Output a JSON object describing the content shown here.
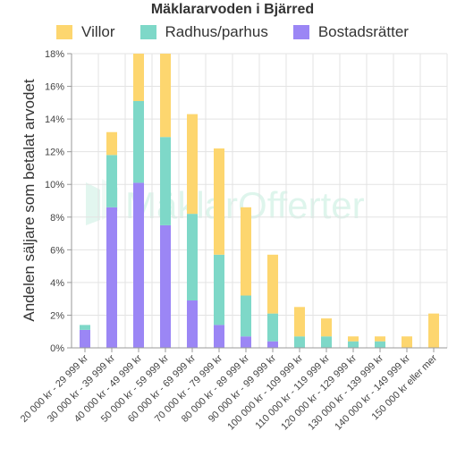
{
  "chart_data": {
    "type": "bar",
    "stacked": true,
    "title": "Mäklararvoden i Bjärred",
    "ylabel": "Andelen säljare som betalat arvodet",
    "xlabel": "",
    "ylim": [
      0,
      18
    ],
    "y_ticks": [
      "0%",
      "2%",
      "4%",
      "6%",
      "8%",
      "10%",
      "12%",
      "14%",
      "16%",
      "18%"
    ],
    "grid": true,
    "legend_position": "top",
    "categories": [
      "20 000 kr - 29 999 kr",
      "30 000 kr - 39 999 kr",
      "40 000 kr - 49 999 kr",
      "50 000 kr - 59 999 kr",
      "60 000 kr - 69 999 kr",
      "70 000 kr - 79 999 kr",
      "80 000 kr - 89 999 kr",
      "90 000 kr - 99 999 kr",
      "100 000 kr - 109 999 kr",
      "110 000 kr - 119 999 kr",
      "120 000 kr - 129 999 kr",
      "130 000 kr - 139 999 kr",
      "140 000 kr - 149 999 kr",
      "150 000 kr eller mer"
    ],
    "series": [
      {
        "name": "Bostadsrätter",
        "color": "#9b86f5",
        "values": [
          1.1,
          8.6,
          10.1,
          7.5,
          2.9,
          1.4,
          0.7,
          0.4,
          0,
          0,
          0,
          0,
          0,
          0
        ]
      },
      {
        "name": "Radhus/parhus",
        "color": "#7ed8c8",
        "values": [
          0.3,
          3.2,
          5.0,
          5.4,
          5.3,
          4.3,
          2.5,
          1.7,
          0.7,
          0.7,
          0.4,
          0.4,
          0,
          0
        ]
      },
      {
        "name": "Villor",
        "color": "#fdd66f",
        "values": [
          0,
          1.4,
          2.9,
          5.1,
          6.1,
          6.5,
          5.4,
          3.6,
          1.8,
          1.1,
          0.3,
          0.3,
          0.7,
          2.1
        ]
      }
    ],
    "legend_order": [
      "Villor",
      "Radhus/parhus",
      "Bostadsrätter"
    ]
  },
  "watermark": "MäklarOfferter"
}
